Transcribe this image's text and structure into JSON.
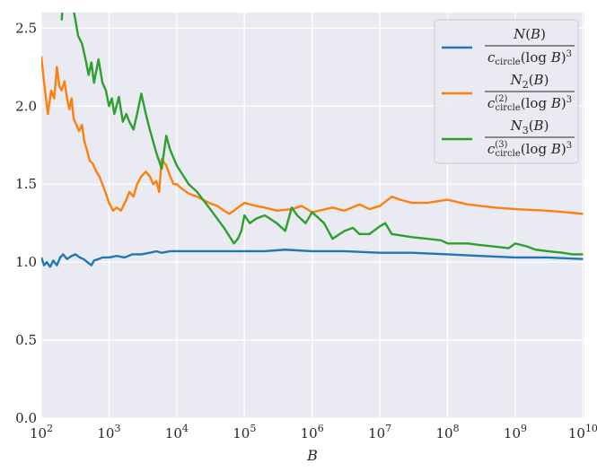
{
  "chart_data": {
    "type": "line",
    "title": "",
    "xlabel": "B",
    "ylabel": "",
    "xscale": "log",
    "xlim": [
      100,
      10500000000
    ],
    "ylim": [
      0,
      2.6
    ],
    "grid": true,
    "legend_position": "top-right",
    "x_ticks": [
      {
        "value": 100,
        "base": "10",
        "exp": "2"
      },
      {
        "value": 1000,
        "base": "10",
        "exp": "3"
      },
      {
        "value": 10000,
        "base": "10",
        "exp": "4"
      },
      {
        "value": 100000,
        "base": "10",
        "exp": "5"
      },
      {
        "value": 1000000,
        "base": "10",
        "exp": "6"
      },
      {
        "value": 10000000,
        "base": "10",
        "exp": "7"
      },
      {
        "value": 100000000,
        "base": "10",
        "exp": "8"
      },
      {
        "value": 1000000000,
        "base": "10",
        "exp": "9"
      },
      {
        "value": 10000000000,
        "base": "10",
        "exp": "10"
      }
    ],
    "y_ticks": [
      {
        "value": 0,
        "label": "0.0"
      },
      {
        "value": 0.5,
        "label": "0.5"
      },
      {
        "value": 1.0,
        "label": "1.0"
      },
      {
        "value": 1.5,
        "label": "1.5"
      },
      {
        "value": 2.0,
        "label": "2.0"
      },
      {
        "value": 2.5,
        "label": "2.5"
      }
    ],
    "series": [
      {
        "name": "N(B) / c_circle (log B)^3",
        "legend": {
          "num_func": "N",
          "num_sub": "",
          "sup": ""
        },
        "color": "#1f77b4",
        "points": [
          [
            100,
            1.03
          ],
          [
            110,
            0.98
          ],
          [
            120,
            1.0
          ],
          [
            135,
            0.97
          ],
          [
            150,
            1.01
          ],
          [
            170,
            0.98
          ],
          [
            190,
            1.03
          ],
          [
            210,
            1.05
          ],
          [
            240,
            1.02
          ],
          [
            280,
            1.04
          ],
          [
            320,
            1.05
          ],
          [
            370,
            1.03
          ],
          [
            420,
            1.02
          ],
          [
            480,
            1.0
          ],
          [
            550,
            0.98
          ],
          [
            600,
            1.01
          ],
          [
            700,
            1.02
          ],
          [
            800,
            1.03
          ],
          [
            1000,
            1.03
          ],
          [
            1300,
            1.04
          ],
          [
            1700,
            1.03
          ],
          [
            2200,
            1.05
          ],
          [
            3000,
            1.05
          ],
          [
            4000,
            1.06
          ],
          [
            5000,
            1.07
          ],
          [
            6000,
            1.06
          ],
          [
            8000,
            1.07
          ],
          [
            10000,
            1.07
          ],
          [
            20000,
            1.07
          ],
          [
            50000,
            1.07
          ],
          [
            100000,
            1.07
          ],
          [
            200000,
            1.07
          ],
          [
            400000,
            1.08
          ],
          [
            1000000,
            1.07
          ],
          [
            3000000,
            1.07
          ],
          [
            10000000,
            1.06
          ],
          [
            30000000,
            1.06
          ],
          [
            100000000,
            1.05
          ],
          [
            300000000,
            1.04
          ],
          [
            1000000000,
            1.03
          ],
          [
            3000000000,
            1.03
          ],
          [
            10000000000,
            1.02
          ]
        ]
      },
      {
        "name": "N_2(B) / c_circle^(2) (log B)^3",
        "legend": {
          "num_func": "N",
          "num_sub": "2",
          "sup": "(2)"
        },
        "color": "#ff7f0e",
        "points": [
          [
            100,
            2.32
          ],
          [
            112,
            2.12
          ],
          [
            125,
            1.95
          ],
          [
            140,
            2.1
          ],
          [
            155,
            2.05
          ],
          [
            170,
            2.25
          ],
          [
            185,
            2.13
          ],
          [
            200,
            2.1
          ],
          [
            220,
            2.16
          ],
          [
            240,
            2.05
          ],
          [
            260,
            1.98
          ],
          [
            280,
            2.05
          ],
          [
            300,
            1.92
          ],
          [
            330,
            1.88
          ],
          [
            360,
            1.84
          ],
          [
            400,
            1.88
          ],
          [
            430,
            1.78
          ],
          [
            470,
            1.72
          ],
          [
            520,
            1.65
          ],
          [
            580,
            1.63
          ],
          [
            650,
            1.58
          ],
          [
            720,
            1.55
          ],
          [
            800,
            1.5
          ],
          [
            900,
            1.44
          ],
          [
            1000,
            1.38
          ],
          [
            1150,
            1.33
          ],
          [
            1300,
            1.35
          ],
          [
            1500,
            1.33
          ],
          [
            1800,
            1.4
          ],
          [
            2000,
            1.45
          ],
          [
            2300,
            1.42
          ],
          [
            2600,
            1.5
          ],
          [
            3000,
            1.55
          ],
          [
            3500,
            1.58
          ],
          [
            4000,
            1.55
          ],
          [
            4500,
            1.5
          ],
          [
            5000,
            1.52
          ],
          [
            5500,
            1.45
          ],
          [
            6000,
            1.66
          ],
          [
            7000,
            1.62
          ],
          [
            8000,
            1.55
          ],
          [
            9000,
            1.5
          ],
          [
            10000,
            1.5
          ],
          [
            12000,
            1.47
          ],
          [
            15000,
            1.44
          ],
          [
            20000,
            1.42
          ],
          [
            30000,
            1.38
          ],
          [
            40000,
            1.36
          ],
          [
            50000,
            1.33
          ],
          [
            60000,
            1.31
          ],
          [
            70000,
            1.33
          ],
          [
            80000,
            1.35
          ],
          [
            100000,
            1.38
          ],
          [
            150000,
            1.36
          ],
          [
            200000,
            1.35
          ],
          [
            300000,
            1.33
          ],
          [
            500000,
            1.34
          ],
          [
            700000,
            1.36
          ],
          [
            1000000,
            1.32
          ],
          [
            2000000,
            1.35
          ],
          [
            3000000,
            1.33
          ],
          [
            5000000,
            1.37
          ],
          [
            7000000,
            1.34
          ],
          [
            10000000,
            1.36
          ],
          [
            15000000,
            1.42
          ],
          [
            20000000,
            1.4
          ],
          [
            30000000,
            1.38
          ],
          [
            50000000,
            1.38
          ],
          [
            100000000,
            1.4
          ],
          [
            200000000,
            1.37
          ],
          [
            500000000,
            1.35
          ],
          [
            1000000000,
            1.34
          ],
          [
            3000000000,
            1.33
          ],
          [
            10000000000,
            1.31
          ]
        ]
      },
      {
        "name": "N_3(B) / c_circle^(3) (log B)^3",
        "legend": {
          "num_func": "N",
          "num_sub": "3",
          "sup": "(3)"
        },
        "color": "#2ca02c",
        "points": [
          [
            200,
            2.55
          ],
          [
            215,
            2.75
          ],
          [
            230,
            2.62
          ],
          [
            250,
            2.8
          ],
          [
            270,
            2.68
          ],
          [
            290,
            2.65
          ],
          [
            320,
            2.55
          ],
          [
            350,
            2.45
          ],
          [
            400,
            2.4
          ],
          [
            450,
            2.3
          ],
          [
            500,
            2.2
          ],
          [
            550,
            2.28
          ],
          [
            600,
            2.15
          ],
          [
            700,
            2.3
          ],
          [
            800,
            2.15
          ],
          [
            900,
            2.1
          ],
          [
            1000,
            2.0
          ],
          [
            1100,
            2.05
          ],
          [
            1200,
            1.95
          ],
          [
            1400,
            2.06
          ],
          [
            1600,
            1.9
          ],
          [
            1800,
            1.95
          ],
          [
            2000,
            1.9
          ],
          [
            2300,
            1.85
          ],
          [
            2600,
            1.95
          ],
          [
            3000,
            2.08
          ],
          [
            3500,
            1.95
          ],
          [
            4000,
            1.85
          ],
          [
            5000,
            1.7
          ],
          [
            6000,
            1.6
          ],
          [
            7000,
            1.81
          ],
          [
            8000,
            1.72
          ],
          [
            10000,
            1.62
          ],
          [
            15000,
            1.5
          ],
          [
            20000,
            1.45
          ],
          [
            30000,
            1.35
          ],
          [
            50000,
            1.22
          ],
          [
            70000,
            1.12
          ],
          [
            80000,
            1.15
          ],
          [
            90000,
            1.2
          ],
          [
            100000,
            1.3
          ],
          [
            120000,
            1.25
          ],
          [
            150000,
            1.28
          ],
          [
            200000,
            1.3
          ],
          [
            300000,
            1.25
          ],
          [
            400000,
            1.2
          ],
          [
            500000,
            1.35
          ],
          [
            600000,
            1.3
          ],
          [
            800000,
            1.25
          ],
          [
            1000000,
            1.32
          ],
          [
            1500000,
            1.25
          ],
          [
            2000000,
            1.15
          ],
          [
            3000000,
            1.2
          ],
          [
            4000000,
            1.22
          ],
          [
            5000000,
            1.18
          ],
          [
            7000000,
            1.18
          ],
          [
            10000000,
            1.23
          ],
          [
            12000000,
            1.25
          ],
          [
            15000000,
            1.18
          ],
          [
            30000000,
            1.16
          ],
          [
            50000000,
            1.15
          ],
          [
            80000000,
            1.14
          ],
          [
            100000000,
            1.12
          ],
          [
            200000000,
            1.12
          ],
          [
            300000000,
            1.11
          ],
          [
            500000000,
            1.1
          ],
          [
            800000000,
            1.09
          ],
          [
            1000000000,
            1.12
          ],
          [
            1500000000,
            1.1
          ],
          [
            2000000000,
            1.08
          ],
          [
            3000000000,
            1.07
          ],
          [
            5000000000,
            1.06
          ],
          [
            7000000000,
            1.05
          ],
          [
            10000000000,
            1.05
          ]
        ]
      }
    ]
  }
}
